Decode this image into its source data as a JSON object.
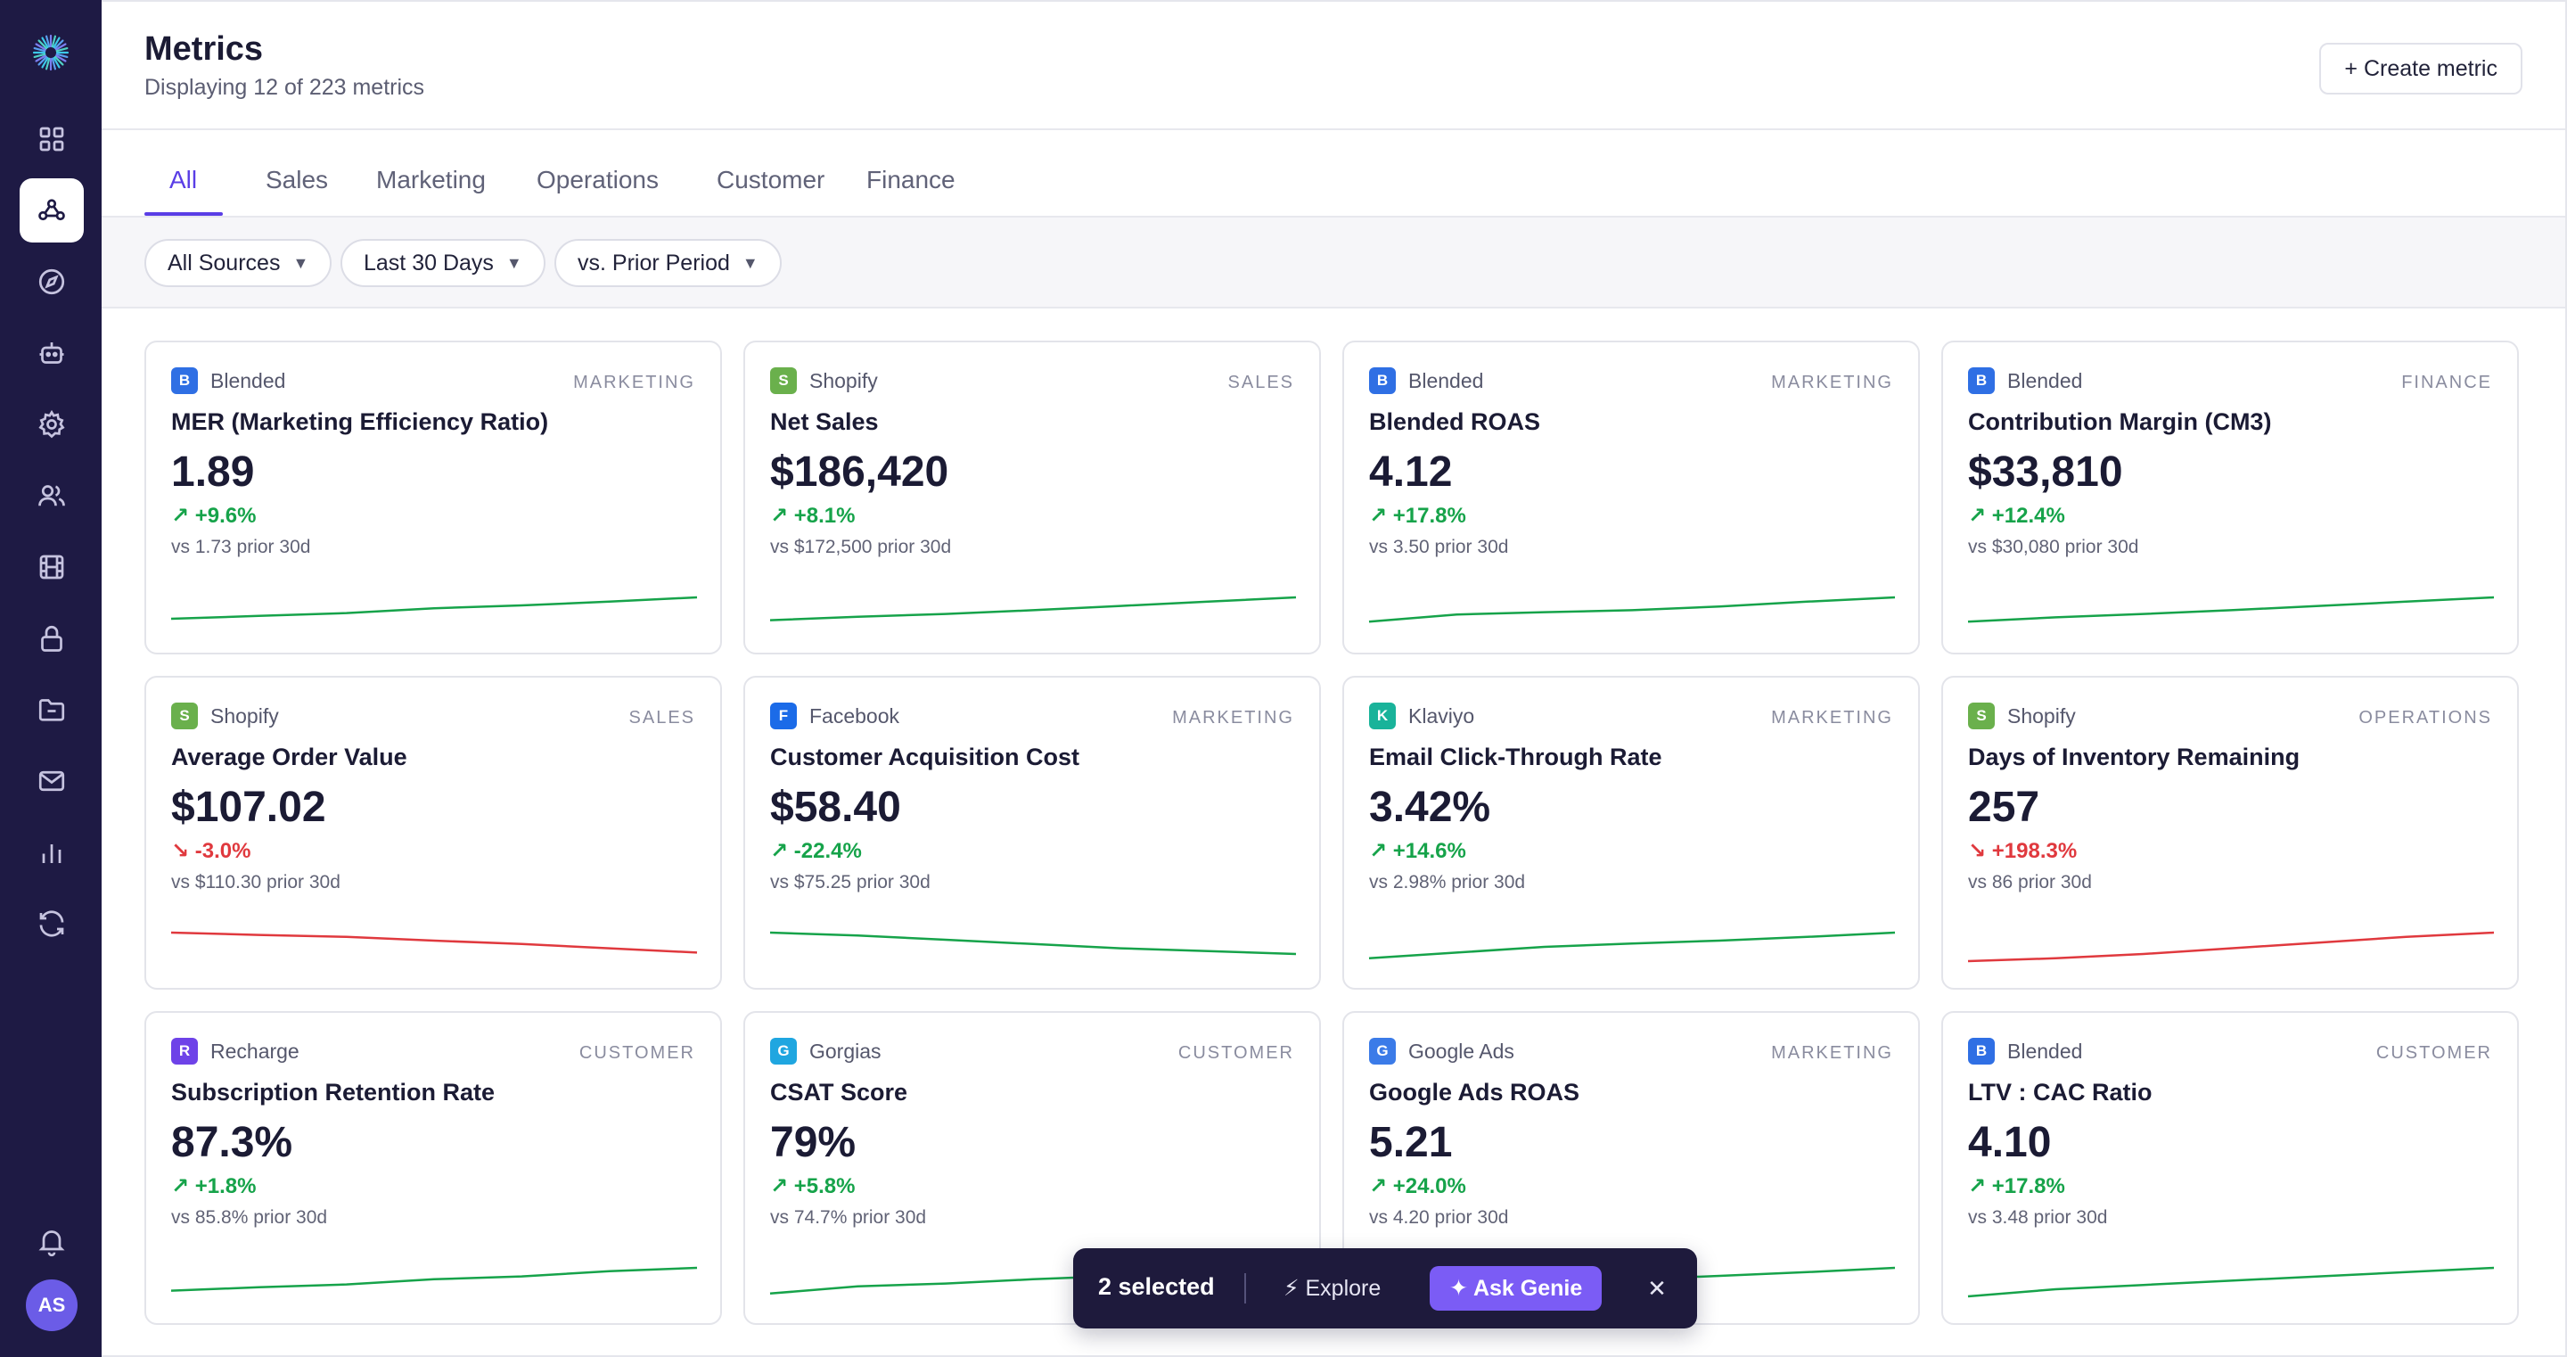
{
  "sidebar": {
    "logo": "sunburst-logo",
    "items": [
      {
        "icon": "grid-icon"
      },
      {
        "icon": "nodes-icon",
        "active": true
      },
      {
        "icon": "compass-icon"
      },
      {
        "icon": "bot-icon"
      },
      {
        "icon": "gear-icon"
      },
      {
        "icon": "users-icon"
      },
      {
        "icon": "film-icon"
      },
      {
        "icon": "lock-icon"
      },
      {
        "icon": "folder-icon"
      },
      {
        "icon": "mail-icon"
      },
      {
        "icon": "bar-chart-icon"
      },
      {
        "icon": "refresh-icon"
      }
    ],
    "bell_icon": "bell-icon",
    "avatar_initials": "AS"
  },
  "header": {
    "title": "Metrics",
    "subtitle": "Displaying 12 of 223 metrics",
    "create_button": "+ Create metric"
  },
  "tabs": [
    "All",
    "Sales",
    "Marketing",
    "Operations",
    "Customer",
    "Finance"
  ],
  "active_tab": "All",
  "filters": [
    {
      "label": "All Sources"
    },
    {
      "label": "Last 30 Days"
    },
    {
      "label": "vs. Prior Period"
    }
  ],
  "colors": {
    "accent": "#5a3ee6",
    "positive": "#16a34a",
    "negative": "#e0393e",
    "sidebar": "#1e1a44"
  },
  "cards": [
    {
      "source": "Blended",
      "badge": "B",
      "badge_color": "#2f6fe4",
      "category": "MARKETING",
      "name": "MER (Marketing Efficiency Ratio)",
      "value": "1.89",
      "delta": "↗ +9.6%",
      "trend": "up",
      "prior": "vs 1.73 prior 30d",
      "spark": [
        0.25,
        0.35,
        0.45,
        0.62,
        0.72,
        0.85,
        1.0
      ]
    },
    {
      "source": "Shopify",
      "badge": "S",
      "badge_color": "#6ab04c",
      "category": "SALES",
      "name": "Net Sales",
      "value": "$186,420",
      "delta": "↗ +8.1%",
      "trend": "up",
      "prior": "vs $172,500 prior 30d",
      "spark": [
        0.2,
        0.32,
        0.42,
        0.55,
        0.7,
        0.85,
        1.0
      ]
    },
    {
      "source": "Blended",
      "badge": "B",
      "badge_color": "#2f6fe4",
      "category": "MARKETING",
      "name": "Blended ROAS",
      "value": "4.12",
      "delta": "↗ +17.8%",
      "trend": "up",
      "prior": "vs 3.50 prior 30d",
      "spark": [
        0.15,
        0.4,
        0.48,
        0.55,
        0.68,
        0.85,
        1.0
      ]
    },
    {
      "source": "Blended",
      "badge": "B",
      "badge_color": "#2f6fe4",
      "category": "FINANCE",
      "name": "Contribution Margin (CM3)",
      "value": "$33,810",
      "delta": "↗ +12.4%",
      "trend": "up",
      "prior": "vs $30,080 prior 30d",
      "spark": [
        0.15,
        0.3,
        0.42,
        0.55,
        0.7,
        0.85,
        1.0
      ]
    },
    {
      "source": "Shopify",
      "badge": "S",
      "badge_color": "#6ab04c",
      "category": "SALES",
      "name": "Average Order Value",
      "value": "$107.02",
      "delta": "↘ -3.0%",
      "trend": "down",
      "prior": "vs $110.30 prior 30d",
      "spark": [
        1.0,
        0.92,
        0.85,
        0.72,
        0.6,
        0.45,
        0.3
      ]
    },
    {
      "source": "Facebook",
      "badge": "F",
      "badge_color": "#1b6be8",
      "category": "MARKETING",
      "name": "Customer Acquisition Cost",
      "value": "$58.40",
      "delta": "↗ -22.4%",
      "trend": "up",
      "prior": "vs $75.25 prior 30d",
      "spark": [
        1.0,
        0.9,
        0.75,
        0.6,
        0.45,
        0.35,
        0.25
      ]
    },
    {
      "source": "Klaviyo",
      "badge": "K",
      "badge_color": "#19b39a",
      "category": "MARKETING",
      "name": "Email Click-Through Rate",
      "value": "3.42%",
      "delta": "↗ +14.6%",
      "trend": "up",
      "prior": "vs 2.98% prior 30d",
      "spark": [
        0.1,
        0.3,
        0.5,
        0.62,
        0.72,
        0.85,
        1.0
      ]
    },
    {
      "source": "Shopify",
      "badge": "S",
      "badge_color": "#6ab04c",
      "category": "OPERATIONS",
      "name": "Days of Inventory Remaining",
      "value": "257",
      "delta": "↘ +198.3%",
      "trend": "down",
      "prior": "vs 86 prior 30d",
      "spark": [
        0.0,
        0.1,
        0.25,
        0.45,
        0.65,
        0.85,
        1.0
      ]
    },
    {
      "source": "Recharge",
      "badge": "R",
      "badge_color": "#6e42e8",
      "category": "CUSTOMER",
      "name": "Subscription Retention Rate",
      "value": "87.3%",
      "delta": "↗ +1.8%",
      "trend": "up",
      "prior": "vs 85.8% prior 30d",
      "spark": [
        0.2,
        0.32,
        0.42,
        0.6,
        0.7,
        0.88,
        1.0
      ]
    },
    {
      "source": "Gorgias",
      "badge": "G",
      "badge_color": "#1fa6e0",
      "category": "CUSTOMER",
      "name": "CSAT Score",
      "value": "79%",
      "delta": "↗ +5.8%",
      "trend": "up",
      "prior": "vs 74.7% prior 30d",
      "spark": [
        0.1,
        0.35,
        0.45,
        0.6,
        0.72,
        0.85,
        1.0
      ]
    },
    {
      "source": "Google Ads",
      "badge": "G",
      "badge_color": "#3b7be8",
      "category": "MARKETING",
      "name": "Google Ads ROAS",
      "value": "5.21",
      "delta": "↗ +24.0%",
      "trend": "up",
      "prior": "vs 4.20 prior 30d",
      "spark": [
        0.1,
        0.3,
        0.45,
        0.6,
        0.72,
        0.85,
        1.0
      ]
    },
    {
      "source": "Blended",
      "badge": "B",
      "badge_color": "#2f6fe4",
      "category": "CUSTOMER",
      "name": "LTV : CAC Ratio",
      "value": "4.10",
      "delta": "↗ +17.8%",
      "trend": "up",
      "prior": "vs 3.48 prior 30d",
      "spark": [
        0.0,
        0.25,
        0.4,
        0.55,
        0.7,
        0.85,
        1.0
      ]
    }
  ],
  "selection_bar": {
    "count": "2 selected",
    "explore": "⚡ Explore",
    "ask_genie": "✦ Ask Genie",
    "close": "✕"
  }
}
